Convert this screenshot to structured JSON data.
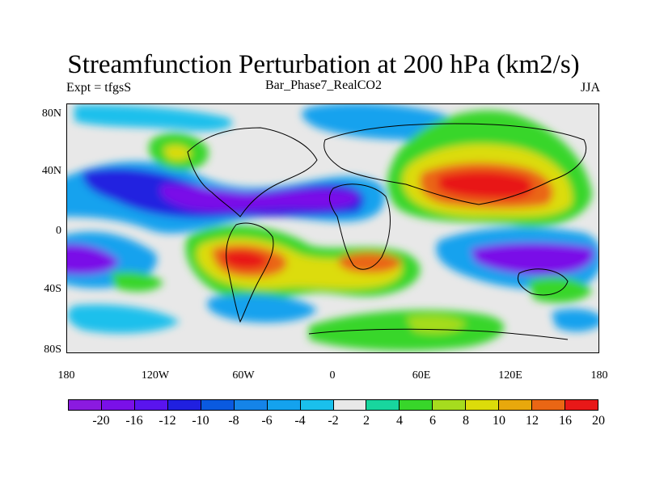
{
  "title": "Streamfunction Perturbation at 200 hPa (km2/s)",
  "subtitle_left": "Expt = tfgsS",
  "subtitle_center": "Bar_Phase7_RealCO2",
  "subtitle_right": "JJA",
  "lat_ticks": [
    "80N",
    "40N",
    "0",
    "40S",
    "80S"
  ],
  "lon_ticks": [
    "180",
    "120W",
    "60W",
    "0",
    "60E",
    "120E",
    "180"
  ],
  "colorbar": {
    "labels": [
      "-20",
      "-16",
      "-12",
      "-10",
      "-8",
      "-6",
      "-4",
      "-2",
      "2",
      "4",
      "6",
      "8",
      "10",
      "12",
      "16",
      "20"
    ],
    "colors": [
      "#8b1ae0",
      "#7a10e8",
      "#5a14ee",
      "#2020e0",
      "#0a5ae0",
      "#1584e8",
      "#14a2ee",
      "#1ac0ec",
      "#e8e8e8",
      "#18d69e",
      "#38d62a",
      "#a6dc1e",
      "#dcdc0a",
      "#e8a80c",
      "#ea6614",
      "#e81818"
    ]
  }
}
